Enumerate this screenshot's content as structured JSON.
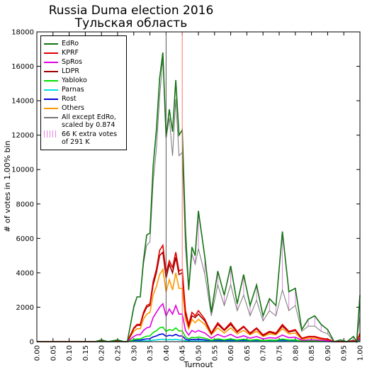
{
  "chart_data": {
    "type": "line",
    "title": "Russia Duma election 2016",
    "subtitle": "Тульская область",
    "xlabel": "Turnout",
    "ylabel": "# of votes in 1.00% bin",
    "xlim": [
      0,
      1
    ],
    "ylim": [
      0,
      18000
    ],
    "xticks": [
      {
        "value": 0,
        "label": "0.00"
      },
      {
        "value": 0.05,
        "label": "0.05"
      },
      {
        "value": 0.1,
        "label": "0.10"
      },
      {
        "value": 0.15,
        "label": "0.15"
      },
      {
        "value": 0.2,
        "label": "0.20"
      },
      {
        "value": 0.25,
        "label": "0.25"
      },
      {
        "value": 0.3,
        "label": "0.30"
      },
      {
        "value": 0.35,
        "label": "0.35"
      },
      {
        "value": 0.4,
        "label": "0.40"
      },
      {
        "value": 0.45,
        "label": "0.45"
      },
      {
        "value": 0.5,
        "label": "0.50"
      },
      {
        "value": 0.55,
        "label": "0.55"
      },
      {
        "value": 0.6,
        "label": "0.60"
      },
      {
        "value": 0.65,
        "label": "0.65"
      },
      {
        "value": 0.7,
        "label": "0.70"
      },
      {
        "value": 0.75,
        "label": "0.75"
      },
      {
        "value": 0.8,
        "label": "0.80"
      },
      {
        "value": 0.85,
        "label": "0.85"
      },
      {
        "value": 0.9,
        "label": "0.90"
      },
      {
        "value": 0.95,
        "label": "0.95"
      },
      {
        "value": 1,
        "label": "1.00"
      }
    ],
    "yticks": [
      0,
      2000,
      4000,
      6000,
      8000,
      10000,
      12000,
      14000,
      16000,
      18000
    ],
    "x": [
      0,
      0.05,
      0.1,
      0.15,
      0.18,
      0.2,
      0.22,
      0.25,
      0.27,
      0.28,
      0.29,
      0.3,
      0.31,
      0.32,
      0.33,
      0.34,
      0.35,
      0.36,
      0.37,
      0.38,
      0.39,
      0.4,
      0.41,
      0.42,
      0.43,
      0.44,
      0.45,
      0.46,
      0.47,
      0.48,
      0.49,
      0.5,
      0.52,
      0.54,
      0.56,
      0.58,
      0.6,
      0.62,
      0.64,
      0.66,
      0.68,
      0.7,
      0.72,
      0.74,
      0.76,
      0.78,
      0.8,
      0.82,
      0.84,
      0.86,
      0.88,
      0.9,
      0.92,
      0.94,
      0.96,
      0.98,
      0.99,
      1.0
    ],
    "series": [
      {
        "name": "EdRo",
        "color": "#137313",
        "values": [
          0,
          0,
          0,
          0,
          0,
          100,
          0,
          100,
          0,
          0,
          1000,
          2000,
          2600,
          2600,
          4700,
          6200,
          6300,
          10200,
          12300,
          15300,
          16800,
          11900,
          13500,
          12200,
          15200,
          12000,
          12300,
          6500,
          3000,
          5500,
          5000,
          7600,
          4900,
          1700,
          4100,
          2700,
          4400,
          2200,
          3900,
          2100,
          3300,
          1500,
          2500,
          2100,
          6400,
          2900,
          3100,
          700,
          1300,
          1500,
          1000,
          700,
          0,
          100,
          0,
          300,
          0,
          2700
        ]
      },
      {
        "name": "KPRF",
        "color": "#e00000",
        "values": [
          0,
          0,
          0,
          0,
          0,
          30,
          0,
          30,
          0,
          0,
          400,
          800,
          1000,
          1000,
          1700,
          2100,
          2200,
          3500,
          4200,
          5300,
          5600,
          4000,
          4700,
          4300,
          5200,
          4100,
          4200,
          1800,
          1000,
          1700,
          1500,
          1800,
          1300,
          500,
          1100,
          700,
          1100,
          600,
          900,
          500,
          800,
          400,
          600,
          500,
          1000,
          600,
          700,
          200,
          300,
          300,
          200,
          150,
          0,
          0,
          0,
          50,
          0,
          500
        ]
      },
      {
        "name": "SpRos",
        "color": "#e000e0",
        "values": [
          0,
          0,
          0,
          0,
          0,
          10,
          0,
          10,
          0,
          0,
          150,
          300,
          400,
          400,
          650,
          800,
          850,
          1400,
          1700,
          2000,
          2200,
          1500,
          1900,
          1600,
          2100,
          1600,
          1600,
          650,
          380,
          650,
          550,
          650,
          500,
          200,
          420,
          270,
          420,
          230,
          340,
          200,
          300,
          160,
          230,
          200,
          380,
          230,
          260,
          80,
          100,
          100,
          80,
          50,
          0,
          0,
          0,
          20,
          0,
          180
        ]
      },
      {
        "name": "LDPR",
        "color": "#a00000",
        "values": [
          0,
          0,
          0,
          0,
          0,
          30,
          0,
          30,
          0,
          0,
          350,
          750,
          950,
          950,
          1600,
          2000,
          2100,
          3300,
          4000,
          5000,
          5200,
          3700,
          4500,
          4000,
          4900,
          3900,
          4000,
          1600,
          900,
          1500,
          1400,
          1600,
          1200,
          450,
          1000,
          650,
          1000,
          550,
          850,
          450,
          750,
          350,
          550,
          450,
          900,
          550,
          650,
          180,
          280,
          280,
          180,
          130,
          0,
          0,
          0,
          50,
          0,
          450
        ]
      },
      {
        "name": "Yabloko",
        "color": "#00e000",
        "values": [
          0,
          0,
          0,
          0,
          0,
          5,
          0,
          5,
          0,
          0,
          60,
          120,
          150,
          150,
          250,
          320,
          330,
          530,
          630,
          800,
          850,
          600,
          700,
          650,
          800,
          620,
          630,
          270,
          150,
          250,
          220,
          270,
          200,
          80,
          160,
          100,
          160,
          90,
          140,
          80,
          120,
          60,
          90,
          80,
          150,
          90,
          100,
          30,
          50,
          50,
          30,
          20,
          0,
          0,
          0,
          10,
          0,
          80
        ]
      },
      {
        "name": "Parnas",
        "color": "#00e0e0",
        "values": [
          0,
          0,
          0,
          0,
          0,
          0,
          0,
          0,
          0,
          0,
          10,
          20,
          25,
          25,
          40,
          50,
          55,
          90,
          100,
          130,
          140,
          100,
          120,
          110,
          130,
          100,
          100,
          45,
          25,
          40,
          35,
          45,
          30,
          12,
          25,
          15,
          25,
          15,
          20,
          12,
          18,
          10,
          15,
          12,
          25,
          15,
          15,
          5,
          8,
          8,
          5,
          3,
          0,
          0,
          0,
          2,
          0,
          10
        ]
      },
      {
        "name": "Rost",
        "color": "#0000e0",
        "values": [
          0,
          0,
          0,
          0,
          0,
          0,
          0,
          0,
          0,
          0,
          30,
          60,
          80,
          80,
          130,
          160,
          170,
          280,
          330,
          420,
          450,
          310,
          370,
          340,
          420,
          330,
          330,
          140,
          80,
          130,
          110,
          140,
          100,
          40,
          80,
          55,
          80,
          45,
          70,
          40,
          60,
          30,
          45,
          40,
          75,
          45,
          50,
          15,
          25,
          25,
          15,
          10,
          0,
          0,
          0,
          5,
          0,
          40
        ]
      },
      {
        "name": "Others",
        "color": "#ff9900",
        "values": [
          0,
          0,
          0,
          0,
          0,
          20,
          0,
          20,
          0,
          0,
          300,
          600,
          750,
          750,
          1300,
          1600,
          1700,
          2700,
          3200,
          3900,
          4200,
          2900,
          3600,
          3000,
          4000,
          3100,
          3100,
          1300,
          750,
          1300,
          1100,
          1300,
          1000,
          400,
          800,
          500,
          800,
          450,
          650,
          400,
          600,
          300,
          450,
          400,
          750,
          450,
          500,
          150,
          200,
          200,
          150,
          100,
          0,
          0,
          0,
          40,
          0,
          350
        ]
      },
      {
        "name": "All except EdRo, scaled by 0.874",
        "color": "#777777",
        "values": [
          0,
          0,
          0,
          0,
          0,
          100,
          0,
          100,
          0,
          0,
          1000,
          2100,
          2600,
          2600,
          4500,
          5600,
          5800,
          9300,
          11200,
          14200,
          16500,
          11800,
          13000,
          10800,
          14100,
          10800,
          11000,
          5400,
          3000,
          5100,
          4500,
          5400,
          3900,
          1500,
          3300,
          2100,
          3300,
          1800,
          2700,
          1500,
          2400,
          1200,
          1800,
          1500,
          3000,
          1800,
          2100,
          600,
          900,
          900,
          600,
          450,
          0,
          0,
          0,
          100,
          0,
          1500
        ]
      }
    ],
    "extra": {
      "name": "66 K extra votes of 291 K",
      "color": "#e080e0"
    },
    "vlines": [
      {
        "x": 0.4,
        "color": "#555555"
      },
      {
        "x": 0.45,
        "color": "#ff7070"
      }
    ]
  }
}
